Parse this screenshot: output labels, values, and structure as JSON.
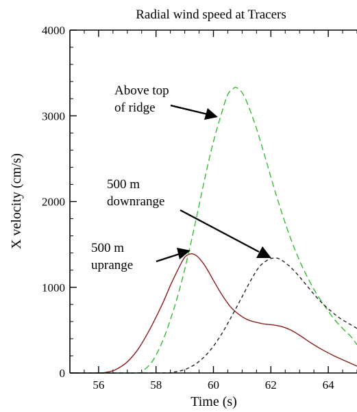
{
  "chart_data": {
    "type": "line",
    "title": "Radial wind speed at Tracers",
    "xlabel": "Time (s)",
    "ylabel": "X velocity (cm/s)",
    "xlim": [
      55,
      65
    ],
    "ylim": [
      0,
      4000
    ],
    "x_ticks": [
      56,
      58,
      60,
      62,
      64
    ],
    "y_ticks": [
      0,
      1000,
      2000,
      3000,
      4000
    ],
    "grid": false,
    "series": [
      {
        "name": "500 m uprange",
        "color": "#8b1a1a",
        "dash": "solid",
        "points": [
          [
            55.0,
            0
          ],
          [
            56.0,
            0
          ],
          [
            56.3,
            10
          ],
          [
            56.6,
            40
          ],
          [
            57.0,
            130
          ],
          [
            57.4,
            290
          ],
          [
            57.8,
            520
          ],
          [
            58.2,
            790
          ],
          [
            58.5,
            1020
          ],
          [
            58.8,
            1230
          ],
          [
            59.0,
            1350
          ],
          [
            59.2,
            1390
          ],
          [
            59.4,
            1370
          ],
          [
            59.6,
            1300
          ],
          [
            59.8,
            1200
          ],
          [
            60.0,
            1080
          ],
          [
            60.3,
            910
          ],
          [
            60.6,
            770
          ],
          [
            60.9,
            680
          ],
          [
            61.2,
            620
          ],
          [
            61.5,
            590
          ],
          [
            61.8,
            570
          ],
          [
            62.1,
            560
          ],
          [
            62.4,
            540
          ],
          [
            62.7,
            500
          ],
          [
            63.0,
            440
          ],
          [
            63.4,
            350
          ],
          [
            63.8,
            270
          ],
          [
            64.2,
            200
          ],
          [
            64.6,
            140
          ],
          [
            65.0,
            80
          ]
        ]
      },
      {
        "name": "Above top of ridge",
        "color": "#33bb33",
        "dash": "long-dash",
        "points": [
          [
            55.0,
            0
          ],
          [
            57.3,
            0
          ],
          [
            57.6,
            40
          ],
          [
            57.9,
            150
          ],
          [
            58.2,
            350
          ],
          [
            58.5,
            620
          ],
          [
            58.8,
            950
          ],
          [
            59.1,
            1350
          ],
          [
            59.4,
            1800
          ],
          [
            59.7,
            2270
          ],
          [
            60.0,
            2700
          ],
          [
            60.3,
            3050
          ],
          [
            60.5,
            3250
          ],
          [
            60.7,
            3320
          ],
          [
            60.8,
            3330
          ],
          [
            61.0,
            3270
          ],
          [
            61.2,
            3130
          ],
          [
            61.5,
            2850
          ],
          [
            61.8,
            2520
          ],
          [
            62.1,
            2170
          ],
          [
            62.4,
            1850
          ],
          [
            62.7,
            1560
          ],
          [
            63.0,
            1310
          ],
          [
            63.3,
            1100
          ],
          [
            63.6,
            920
          ],
          [
            63.9,
            770
          ],
          [
            64.2,
            630
          ],
          [
            64.5,
            520
          ],
          [
            64.8,
            420
          ],
          [
            65.0,
            330
          ]
        ]
      },
      {
        "name": "500 m downrange",
        "color": "#222222",
        "dash": "short-dash",
        "points": [
          [
            55.0,
            0
          ],
          [
            58.2,
            0
          ],
          [
            58.6,
            10
          ],
          [
            59.0,
            40
          ],
          [
            59.4,
            110
          ],
          [
            59.8,
            230
          ],
          [
            60.2,
            410
          ],
          [
            60.6,
            640
          ],
          [
            61.0,
            890
          ],
          [
            61.3,
            1080
          ],
          [
            61.6,
            1240
          ],
          [
            61.9,
            1320
          ],
          [
            62.1,
            1340
          ],
          [
            62.3,
            1330
          ],
          [
            62.6,
            1260
          ],
          [
            62.9,
            1160
          ],
          [
            63.2,
            1040
          ],
          [
            63.5,
            920
          ],
          [
            63.8,
            810
          ],
          [
            64.1,
            720
          ],
          [
            64.4,
            640
          ],
          [
            64.7,
            580
          ],
          [
            65.0,
            520
          ]
        ]
      }
    ],
    "annotations": [
      {
        "lines": [
          "Above top",
          "of ridge"
        ]
      },
      {
        "lines": [
          "500 m",
          "downrange"
        ]
      },
      {
        "lines": [
          "500 m",
          "uprange"
        ]
      }
    ]
  }
}
